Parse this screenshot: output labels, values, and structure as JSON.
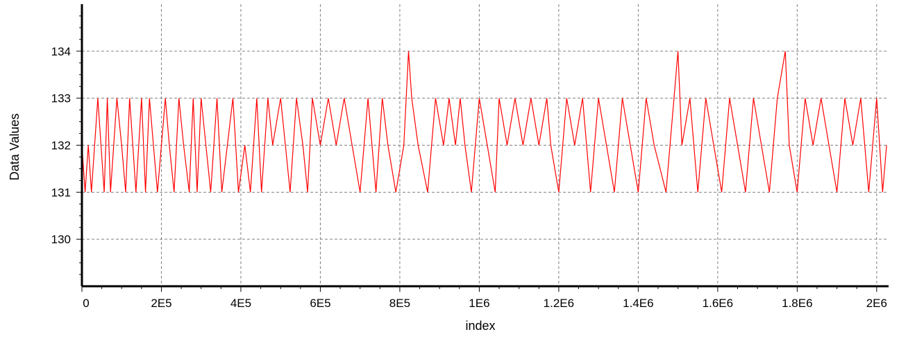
{
  "chart_data": {
    "type": "line",
    "title": "",
    "xlabel": "index",
    "ylabel": "Data Values",
    "xlim": [
      0,
      2030000
    ],
    "ylim": [
      129,
      135
    ],
    "x_ticks": [
      {
        "value": 0,
        "label": "0"
      },
      {
        "value": 200000,
        "label": "2E5"
      },
      {
        "value": 400000,
        "label": "4E5"
      },
      {
        "value": 600000,
        "label": "6E5"
      },
      {
        "value": 800000,
        "label": "8E5"
      },
      {
        "value": 1000000,
        "label": "1E6"
      },
      {
        "value": 1200000,
        "label": "1.2E6"
      },
      {
        "value": 1400000,
        "label": "1.4E6"
      },
      {
        "value": 1600000,
        "label": "1.6E6"
      },
      {
        "value": 1800000,
        "label": "1.8E6"
      },
      {
        "value": 2000000,
        "label": "2E6"
      }
    ],
    "y_ticks": [
      {
        "value": 130,
        "label": "130"
      },
      {
        "value": 131,
        "label": "131"
      },
      {
        "value": 132,
        "label": "132"
      },
      {
        "value": 133,
        "label": "133"
      },
      {
        "value": 134,
        "label": "134"
      }
    ],
    "grid": true,
    "legend": "none",
    "series_color": "#ff0000",
    "series": [
      {
        "x": [
          0,
          8000,
          16000,
          24000,
          40000,
          48000,
          56000,
          64000,
          72000,
          88000,
          100000,
          110000,
          120000,
          128000,
          136000,
          150000,
          160000,
          170000,
          180000,
          190000,
          210000,
          220000,
          232000,
          244000,
          256000,
          270000,
          280000,
          290000,
          300000,
          312000,
          324000,
          340000,
          352000,
          366000,
          380000,
          394000,
          410000,
          424000,
          440000,
          452000,
          468000,
          480000,
          500000,
          512000,
          524000,
          540000,
          556000,
          568000,
          580000,
          600000,
          620000,
          640000,
          660000,
          680000,
          700000,
          720000,
          740000,
          756000,
          770000,
          790000,
          810000,
          822000,
          830000,
          846000,
          870000,
          890000,
          910000,
          924000,
          940000,
          952000,
          964000,
          980000,
          1000000,
          1020000,
          1040000,
          1050000,
          1070000,
          1090000,
          1110000,
          1130000,
          1150000,
          1170000,
          1180000,
          1200000,
          1220000,
          1240000,
          1260000,
          1280000,
          1300000,
          1320000,
          1340000,
          1360000,
          1380000,
          1400000,
          1420000,
          1440000,
          1470000,
          1490000,
          1500000,
          1510000,
          1530000,
          1550000,
          1570000,
          1590000,
          1610000,
          1630000,
          1650000,
          1670000,
          1690000,
          1710000,
          1730000,
          1750000,
          1770000,
          1780000,
          1800000,
          1820000,
          1840000,
          1860000,
          1880000,
          1900000,
          1920000,
          1940000,
          1960000,
          1980000,
          2000000,
          2015000,
          2025000
        ],
        "values": [
          132,
          131,
          132,
          131,
          133,
          132,
          131,
          133,
          131,
          133,
          132,
          131,
          133,
          132,
          131,
          133,
          131,
          133,
          132,
          131,
          133,
          132,
          131,
          133,
          132,
          131,
          133,
          131,
          133,
          132,
          131,
          133,
          131,
          132,
          133,
          131,
          132,
          131,
          133,
          131,
          133,
          132,
          133,
          132,
          131,
          133,
          132,
          131,
          133,
          132,
          133,
          132,
          133,
          132,
          131,
          133,
          131,
          133,
          132,
          131,
          132,
          134,
          133,
          132,
          131,
          133,
          132,
          133,
          132,
          133,
          132,
          131,
          133,
          132,
          131,
          133,
          132,
          133,
          132,
          133,
          132,
          133,
          132,
          131,
          133,
          132,
          133,
          131,
          133,
          132,
          131,
          133,
          132,
          131,
          133,
          132,
          131,
          133,
          134,
          132,
          133,
          131,
          133,
          132,
          131,
          133,
          132,
          131,
          133,
          132,
          131,
          133,
          134,
          132,
          131,
          133,
          132,
          133,
          132,
          131,
          133,
          132,
          133,
          131,
          133,
          131,
          132
        ]
      }
    ]
  }
}
